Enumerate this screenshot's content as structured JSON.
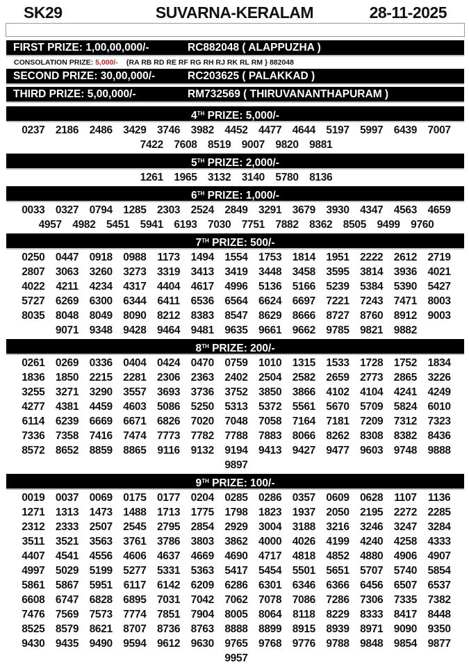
{
  "header": {
    "code": "SK29",
    "name": "SUVARNA-KERALAM",
    "date": "28-11-2025"
  },
  "first": {
    "label": "FIRST PRIZE: 1,00,00,000/-",
    "winner": "RC882048 ( ALAPPUZHA )"
  },
  "consolation": {
    "label": "CONSOLATION PRIZE:",
    "amount": "5,000/-",
    "series": "{RA RB RD RE RF RG RH RJ RK RL RM } 882048"
  },
  "second": {
    "label": "SECOND PRIZE: 30,00,000/-",
    "winner": "RC203625 ( PALAKKAD )"
  },
  "third": {
    "label": "THIRD PRIZE: 5,00,000/-",
    "winner": "RM732569 ( THIRUVANANTHAPURAM )"
  },
  "colors": {
    "bar": "#000000",
    "accent": "#d0201c"
  },
  "prizes": [
    {
      "ord": "4",
      "sup": "TH",
      "label": " PRIZE: 5,000/-",
      "numbers": [
        "0237",
        "2186",
        "2486",
        "3429",
        "3746",
        "3982",
        "4452",
        "4477",
        "4644",
        "5197",
        "5997",
        "6439",
        "7007",
        "7422",
        "7608",
        "8519",
        "9007",
        "9820",
        "9881"
      ]
    },
    {
      "ord": "5",
      "sup": "TH",
      "label": " PRIZE: 2,000/-",
      "numbers": [
        "1261",
        "1965",
        "3132",
        "3140",
        "5780",
        "8136"
      ]
    },
    {
      "ord": "6",
      "sup": "TH",
      "label": " PRIZE: 1,000/-",
      "numbers": [
        "0033",
        "0327",
        "0794",
        "1285",
        "2303",
        "2524",
        "2849",
        "3291",
        "3679",
        "3930",
        "4347",
        "4563",
        "4659",
        "4957",
        "4982",
        "5451",
        "5941",
        "6193",
        "7030",
        "7751",
        "7882",
        "8362",
        "8505",
        "9499",
        "9760"
      ]
    },
    {
      "ord": "7",
      "sup": "TH",
      "label": " PRIZE: 500/-",
      "numbers": [
        "0250",
        "0447",
        "0918",
        "0988",
        "1173",
        "1494",
        "1554",
        "1753",
        "1814",
        "1951",
        "2222",
        "2612",
        "2719",
        "2807",
        "3063",
        "3260",
        "3273",
        "3319",
        "3413",
        "3419",
        "3448",
        "3458",
        "3595",
        "3814",
        "3936",
        "4021",
        "4022",
        "4211",
        "4234",
        "4317",
        "4404",
        "4617",
        "4996",
        "5136",
        "5166",
        "5239",
        "5384",
        "5390",
        "5427",
        "5727",
        "6269",
        "6300",
        "6344",
        "6411",
        "6536",
        "6564",
        "6624",
        "6697",
        "7221",
        "7243",
        "7471",
        "8003",
        "8035",
        "8048",
        "8049",
        "8090",
        "8212",
        "8383",
        "8547",
        "8629",
        "8666",
        "8727",
        "8760",
        "8912",
        "9003",
        "9071",
        "9348",
        "9428",
        "9464",
        "9481",
        "9635",
        "9661",
        "9662",
        "9785",
        "9821",
        "9882"
      ]
    },
    {
      "ord": "8",
      "sup": "TH",
      "label": " PRIZE: 200/-",
      "numbers": [
        "0261",
        "0269",
        "0336",
        "0404",
        "0424",
        "0470",
        "0759",
        "1010",
        "1315",
        "1533",
        "1728",
        "1752",
        "1834",
        "1836",
        "1850",
        "2215",
        "2281",
        "2306",
        "2363",
        "2402",
        "2504",
        "2582",
        "2659",
        "2773",
        "2865",
        "3226",
        "3255",
        "3271",
        "3290",
        "3557",
        "3693",
        "3736",
        "3752",
        "3850",
        "3866",
        "4102",
        "4104",
        "4241",
        "4249",
        "4277",
        "4381",
        "4459",
        "4603",
        "5086",
        "5250",
        "5313",
        "5372",
        "5561",
        "5670",
        "5709",
        "5824",
        "6010",
        "6114",
        "6239",
        "6669",
        "6671",
        "6826",
        "7020",
        "7048",
        "7058",
        "7164",
        "7181",
        "7209",
        "7312",
        "7323",
        "7336",
        "7358",
        "7416",
        "7474",
        "7773",
        "7782",
        "7788",
        "7883",
        "8066",
        "8262",
        "8308",
        "8382",
        "8436",
        "8572",
        "8652",
        "8859",
        "8865",
        "9116",
        "9132",
        "9194",
        "9413",
        "9427",
        "9477",
        "9603",
        "9748",
        "9888",
        "9897"
      ]
    },
    {
      "ord": "9",
      "sup": "TH",
      "label": " PRIZE: 100/-",
      "numbers": [
        "0019",
        "0037",
        "0069",
        "0175",
        "0177",
        "0204",
        "0285",
        "0286",
        "0357",
        "0609",
        "0628",
        "1107",
        "1136",
        "1271",
        "1313",
        "1473",
        "1488",
        "1713",
        "1775",
        "1798",
        "1823",
        "1937",
        "2050",
        "2195",
        "2272",
        "2285",
        "2312",
        "2333",
        "2507",
        "2545",
        "2795",
        "2854",
        "2929",
        "3004",
        "3188",
        "3216",
        "3246",
        "3247",
        "3284",
        "3511",
        "3521",
        "3563",
        "3761",
        "3786",
        "3803",
        "3862",
        "4000",
        "4026",
        "4199",
        "4240",
        "4258",
        "4333",
        "4407",
        "4541",
        "4556",
        "4606",
        "4637",
        "4669",
        "4690",
        "4717",
        "4818",
        "4852",
        "4880",
        "4906",
        "4907",
        "4997",
        "5029",
        "5199",
        "5277",
        "5331",
        "5363",
        "5417",
        "5454",
        "5501",
        "5651",
        "5707",
        "5740",
        "5854",
        "5861",
        "5867",
        "5951",
        "6117",
        "6142",
        "6209",
        "6286",
        "6301",
        "6346",
        "6366",
        "6456",
        "6507",
        "6537",
        "6608",
        "6747",
        "6828",
        "6895",
        "7031",
        "7042",
        "7062",
        "7078",
        "7086",
        "7286",
        "7306",
        "7335",
        "7382",
        "7476",
        "7569",
        "7573",
        "7774",
        "7851",
        "7904",
        "8005",
        "8064",
        "8118",
        "8229",
        "8333",
        "8417",
        "8448",
        "8525",
        "8579",
        "8621",
        "8707",
        "8736",
        "8763",
        "8888",
        "8899",
        "8915",
        "8939",
        "8971",
        "9090",
        "9350",
        "9430",
        "9435",
        "9490",
        "9594",
        "9612",
        "9630",
        "9765",
        "9768",
        "9776",
        "9788",
        "9848",
        "9854",
        "9877",
        "9957"
      ]
    }
  ]
}
